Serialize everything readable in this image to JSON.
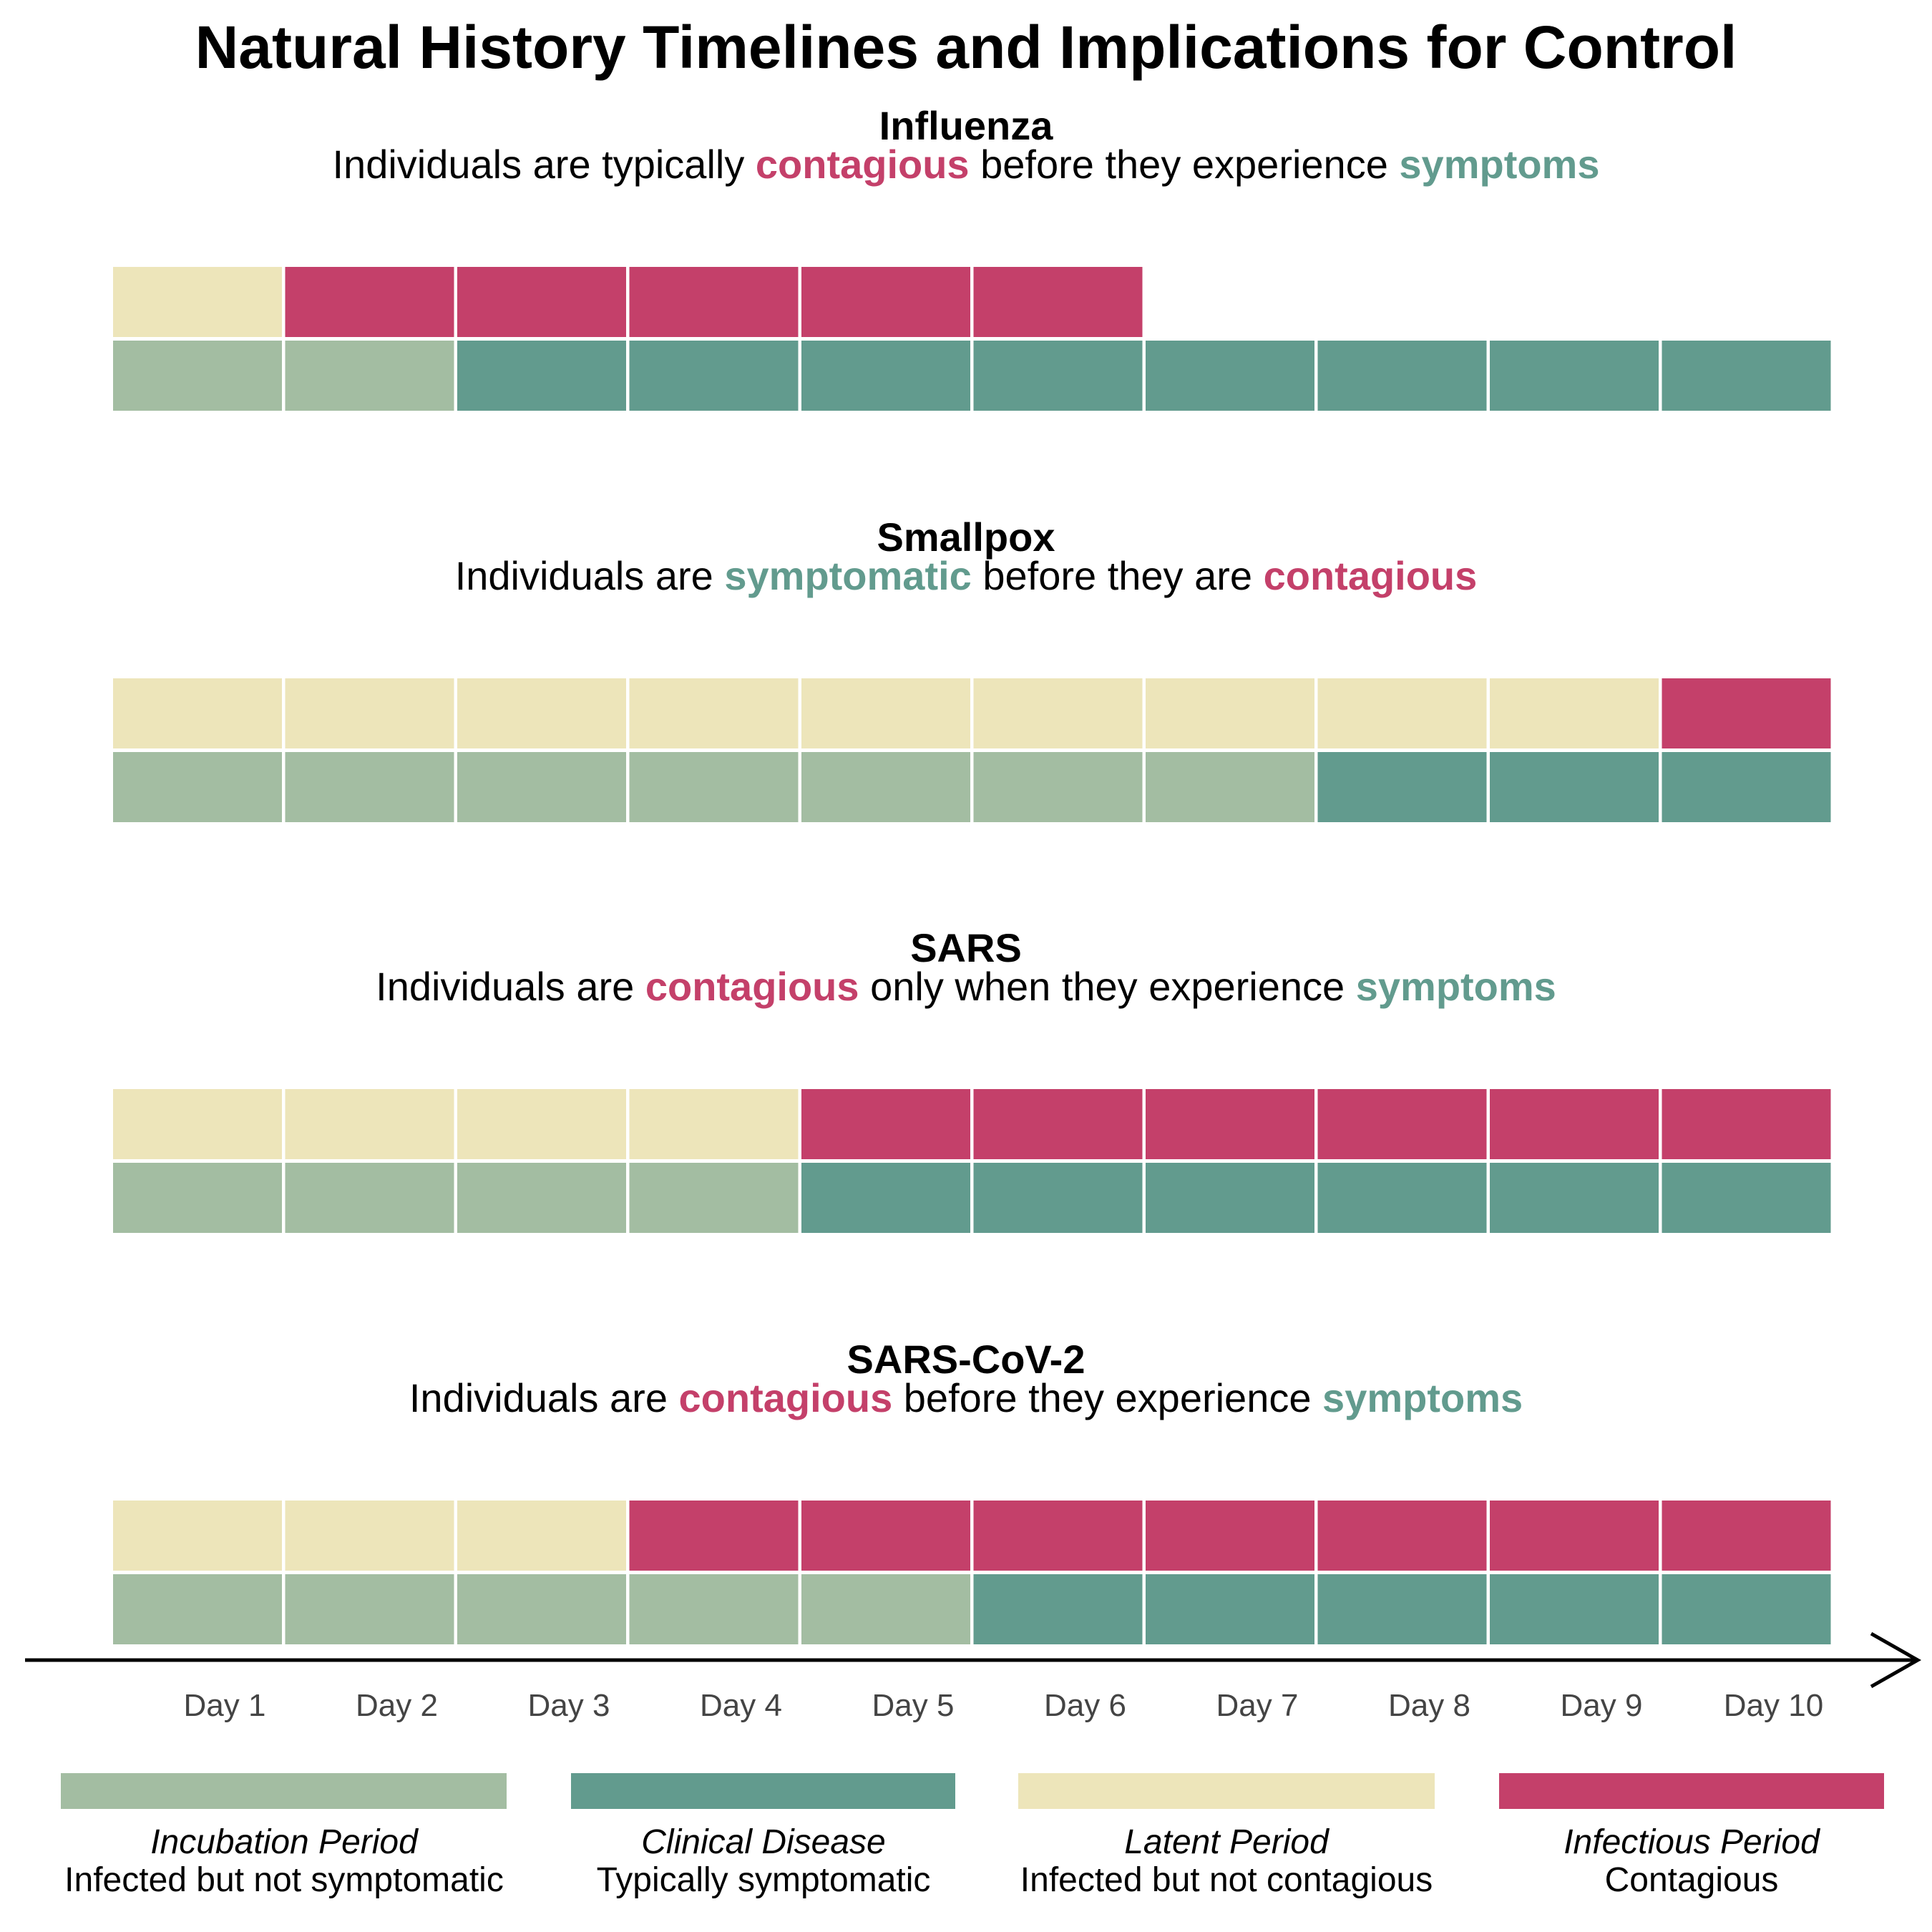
{
  "chart_data": {
    "type": "heatmap",
    "title": "Natural History Timelines and Implications for Control",
    "x_ticks": [
      "Day 1",
      "Day 2",
      "Day 3",
      "Day 4",
      "Day 5",
      "Day 6",
      "Day 7",
      "Day 8",
      "Day 9",
      "Day 10"
    ],
    "colors": {
      "incubation": "#a3bda2",
      "clinical": "#629b8e",
      "latent": "#ede5ba",
      "infectious": "#c4406a"
    },
    "panels": [
      {
        "name": "Influenza",
        "subtitle": [
          {
            "text": "Individuals are typically ",
            "style": "plain"
          },
          {
            "text": "contagious",
            "style": "infectious"
          },
          {
            "text": " before they experience ",
            "style": "plain"
          },
          {
            "text": "symptoms",
            "style": "clinical"
          }
        ],
        "infectiousness_row": [
          "latent",
          "infectious",
          "infectious",
          "infectious",
          "infectious",
          "infectious",
          null,
          null,
          null,
          null
        ],
        "symptoms_row": [
          "incubation",
          "incubation",
          "clinical",
          "clinical",
          "clinical",
          "clinical",
          "clinical",
          "clinical",
          "clinical",
          "clinical"
        ]
      },
      {
        "name": "Smallpox",
        "subtitle": [
          {
            "text": "Individuals are ",
            "style": "plain"
          },
          {
            "text": "symptomatic",
            "style": "clinical"
          },
          {
            "text": " before they are ",
            "style": "plain"
          },
          {
            "text": "contagious",
            "style": "infectious"
          }
        ],
        "infectiousness_row": [
          "latent",
          "latent",
          "latent",
          "latent",
          "latent",
          "latent",
          "latent",
          "latent",
          "latent",
          "infectious"
        ],
        "symptoms_row": [
          "incubation",
          "incubation",
          "incubation",
          "incubation",
          "incubation",
          "incubation",
          "incubation",
          "clinical",
          "clinical",
          "clinical"
        ]
      },
      {
        "name": "SARS",
        "subtitle": [
          {
            "text": "Individuals are ",
            "style": "plain"
          },
          {
            "text": "contagious",
            "style": "infectious"
          },
          {
            "text": " only when they experience ",
            "style": "plain"
          },
          {
            "text": "symptoms",
            "style": "clinical"
          }
        ],
        "infectiousness_row": [
          "latent",
          "latent",
          "latent",
          "latent",
          "infectious",
          "infectious",
          "infectious",
          "infectious",
          "infectious",
          "infectious"
        ],
        "symptoms_row": [
          "incubation",
          "incubation",
          "incubation",
          "incubation",
          "clinical",
          "clinical",
          "clinical",
          "clinical",
          "clinical",
          "clinical"
        ]
      },
      {
        "name": "SARS-CoV-2",
        "subtitle": [
          {
            "text": "Individuals are ",
            "style": "plain"
          },
          {
            "text": "contagious",
            "style": "infectious"
          },
          {
            "text": " before they experience ",
            "style": "plain"
          },
          {
            "text": "symptoms",
            "style": "clinical"
          }
        ],
        "infectiousness_row": [
          "latent",
          "latent",
          "latent",
          "infectious",
          "infectious",
          "infectious",
          "infectious",
          "infectious",
          "infectious",
          "infectious"
        ],
        "symptoms_row": [
          "incubation",
          "incubation",
          "incubation",
          "incubation",
          "incubation",
          "clinical",
          "clinical",
          "clinical",
          "clinical",
          "clinical"
        ]
      }
    ],
    "legend": [
      {
        "key": "incubation",
        "name": "Incubation Period",
        "description": "Infected but not symptomatic"
      },
      {
        "key": "clinical",
        "name": "Clinical Disease",
        "description": "Typically symptomatic"
      },
      {
        "key": "latent",
        "name": "Latent Period",
        "description": "Infected but not contagious"
      },
      {
        "key": "infectious",
        "name": "Infectious Period",
        "description": "Contagious"
      }
    ]
  }
}
